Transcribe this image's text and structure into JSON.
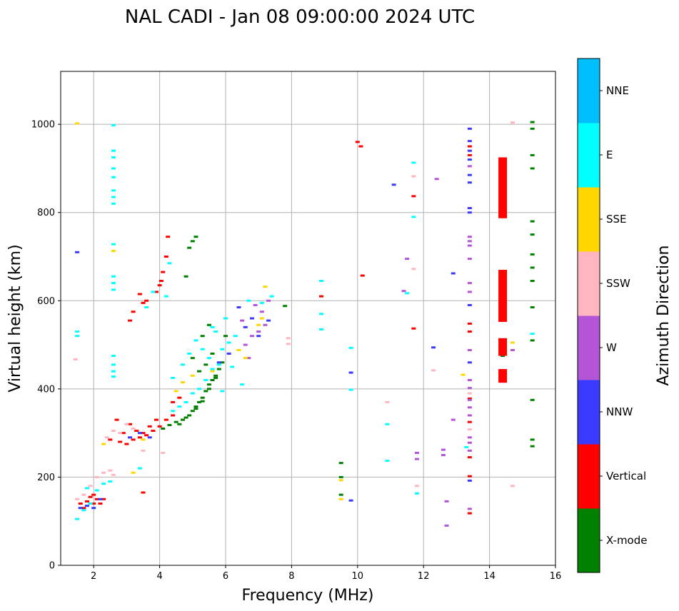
{
  "chart_data": {
    "type": "scatter",
    "title": "NAL CADI - Jan 08 09:00:00 2024 UTC",
    "xlabel": "Frequency (MHz)",
    "ylabel": "Virtual height (km)",
    "xlim": [
      1,
      16
    ],
    "ylim": [
      0,
      1120
    ],
    "xticks": [
      2,
      4,
      6,
      8,
      10,
      12,
      14,
      16
    ],
    "yticks": [
      0,
      200,
      400,
      600,
      800,
      1000
    ],
    "grid": true,
    "colorbar": {
      "label": "Azimuth Direction",
      "categories": [
        {
          "name": "X-mode",
          "color": "#008000"
        },
        {
          "name": "Vertical",
          "color": "#ff0000"
        },
        {
          "name": "NNW",
          "color": "#3a3aff"
        },
        {
          "name": "W",
          "color": "#b355d6"
        },
        {
          "name": "SSW",
          "color": "#ffb6c1"
        },
        {
          "name": "SSE",
          "color": "#ffd700"
        },
        {
          "name": "E",
          "color": "#00ffff"
        },
        {
          "name": "NNE",
          "color": "#00bfff"
        }
      ]
    },
    "series": [
      {
        "name": "X-mode",
        "points": [
          [
            4.1,
            310
          ],
          [
            4.3,
            318
          ],
          [
            4.5,
            325
          ],
          [
            4.7,
            330
          ],
          [
            4.9,
            340
          ],
          [
            5.0,
            350
          ],
          [
            5.1,
            360
          ],
          [
            5.2,
            370
          ],
          [
            5.3,
            380
          ],
          [
            5.4,
            395
          ],
          [
            5.5,
            410
          ],
          [
            5.6,
            420
          ],
          [
            5.7,
            430
          ],
          [
            5.8,
            445
          ],
          [
            5.9,
            460
          ],
          [
            4.6,
            320
          ],
          [
            4.8,
            335
          ],
          [
            5.1,
            355
          ],
          [
            5.3,
            372
          ],
          [
            5.5,
            400
          ],
          [
            5.7,
            425
          ],
          [
            5.2,
            440
          ],
          [
            5.4,
            455
          ],
          [
            5.6,
            480
          ],
          [
            5.0,
            470
          ],
          [
            5.3,
            520
          ],
          [
            5.5,
            545
          ],
          [
            6.0,
            520
          ],
          [
            4.8,
            655
          ],
          [
            4.9,
            720
          ],
          [
            5.0,
            735
          ],
          [
            5.1,
            745
          ],
          [
            7.8,
            588
          ],
          [
            14.4,
            660
          ],
          [
            14.4,
            475
          ],
          [
            14.4,
            860
          ],
          [
            14.4,
            895
          ],
          [
            15.3,
            1005
          ],
          [
            15.3,
            990
          ],
          [
            15.3,
            930
          ],
          [
            15.3,
            900
          ],
          [
            15.3,
            780
          ],
          [
            15.3,
            750
          ],
          [
            15.3,
            705
          ],
          [
            15.3,
            675
          ],
          [
            15.3,
            645
          ],
          [
            15.3,
            585
          ],
          [
            15.3,
            510
          ],
          [
            15.3,
            375
          ],
          [
            15.3,
            285
          ],
          [
            15.3,
            270
          ],
          [
            9.5,
            232
          ],
          [
            9.5,
            200
          ],
          [
            9.5,
            160
          ]
        ]
      },
      {
        "name": "Vertical",
        "points": [
          [
            1.6,
            140
          ],
          [
            1.8,
            145
          ],
          [
            1.9,
            155
          ],
          [
            2.0,
            160
          ],
          [
            2.1,
            150
          ],
          [
            2.2,
            140
          ],
          [
            2.3,
            150
          ],
          [
            2.0,
            140
          ],
          [
            1.7,
            130
          ],
          [
            2.5,
            285
          ],
          [
            2.8,
            280
          ],
          [
            3.0,
            275
          ],
          [
            3.2,
            285
          ],
          [
            3.4,
            290
          ],
          [
            3.6,
            295
          ],
          [
            3.8,
            305
          ],
          [
            4.0,
            315
          ],
          [
            4.2,
            330
          ],
          [
            4.4,
            340
          ],
          [
            3.1,
            320
          ],
          [
            3.3,
            305
          ],
          [
            3.5,
            300
          ],
          [
            3.7,
            315
          ],
          [
            3.9,
            330
          ],
          [
            2.7,
            330
          ],
          [
            2.9,
            300
          ],
          [
            3.1,
            555
          ],
          [
            3.2,
            575
          ],
          [
            3.5,
            595
          ],
          [
            3.6,
            600
          ],
          [
            3.9,
            620
          ],
          [
            4.0,
            635
          ],
          [
            4.05,
            645
          ],
          [
            4.1,
            665
          ],
          [
            4.2,
            700
          ],
          [
            4.25,
            745
          ],
          [
            3.4,
            615
          ],
          [
            3.5,
            165
          ],
          [
            4.6,
            380
          ],
          [
            4.4,
            370
          ],
          [
            8.9,
            610
          ],
          [
            10.0,
            960
          ],
          [
            10.1,
            950
          ],
          [
            10.15,
            657
          ],
          [
            11.7,
            837
          ],
          [
            11.7,
            537
          ],
          [
            13.4,
            950
          ],
          [
            13.4,
            930
          ],
          [
            13.4,
            548
          ],
          [
            13.4,
            530
          ],
          [
            13.4,
            378
          ],
          [
            13.4,
            325
          ],
          [
            13.4,
            245
          ],
          [
            13.4,
            202
          ],
          [
            13.4,
            118
          ]
        ]
      },
      {
        "name": "NNW",
        "points": [
          [
            1.5,
            710
          ],
          [
            1.6,
            130
          ],
          [
            1.8,
            135
          ],
          [
            2.0,
            130
          ],
          [
            2.2,
            150
          ],
          [
            3.1,
            290
          ],
          [
            3.4,
            300
          ],
          [
            3.7,
            290
          ],
          [
            5.8,
            460
          ],
          [
            6.1,
            480
          ],
          [
            6.6,
            540
          ],
          [
            6.8,
            560
          ],
          [
            7.0,
            520
          ],
          [
            7.3,
            555
          ],
          [
            6.4,
            585
          ],
          [
            9.8,
            437
          ],
          [
            9.8,
            147
          ],
          [
            11.1,
            863
          ],
          [
            12.3,
            494
          ],
          [
            12.9,
            662
          ],
          [
            13.4,
            990
          ],
          [
            13.4,
            962
          ],
          [
            13.4,
            940
          ],
          [
            13.4,
            920
          ],
          [
            13.4,
            885
          ],
          [
            13.4,
            868
          ],
          [
            13.4,
            810
          ],
          [
            13.4,
            800
          ],
          [
            13.4,
            590
          ],
          [
            13.4,
            460
          ],
          [
            13.4,
            192
          ]
        ]
      },
      {
        "name": "W",
        "points": [
          [
            6.6,
            500
          ],
          [
            6.8,
            520
          ],
          [
            7.0,
            530
          ],
          [
            7.2,
            545
          ],
          [
            6.9,
            590
          ],
          [
            7.1,
            575
          ],
          [
            6.7,
            470
          ],
          [
            7.3,
            600
          ],
          [
            6.5,
            555
          ],
          [
            11.4,
            622
          ],
          [
            11.5,
            695
          ],
          [
            11.8,
            255
          ],
          [
            11.8,
            241
          ],
          [
            12.4,
            876
          ],
          [
            12.6,
            262
          ],
          [
            12.6,
            250
          ],
          [
            12.7,
            145
          ],
          [
            12.7,
            90
          ],
          [
            12.9,
            330
          ],
          [
            13.4,
            905
          ],
          [
            13.4,
            745
          ],
          [
            13.4,
            735
          ],
          [
            13.4,
            725
          ],
          [
            13.4,
            695
          ],
          [
            13.4,
            640
          ],
          [
            13.4,
            620
          ],
          [
            13.4,
            488
          ],
          [
            13.4,
            420
          ],
          [
            13.4,
            402
          ],
          [
            13.4,
            375
          ],
          [
            13.4,
            358
          ],
          [
            13.4,
            340
          ],
          [
            13.4,
            290
          ],
          [
            13.4,
            278
          ],
          [
            13.4,
            260
          ],
          [
            13.4,
            128
          ],
          [
            14.7,
            488
          ]
        ]
      },
      {
        "name": "SSW",
        "points": [
          [
            1.45,
            467
          ],
          [
            1.5,
            150
          ],
          [
            1.7,
            160
          ],
          [
            1.9,
            180
          ],
          [
            2.1,
            200
          ],
          [
            2.3,
            210
          ],
          [
            2.5,
            215
          ],
          [
            2.6,
            205
          ],
          [
            2.4,
            290
          ],
          [
            2.6,
            305
          ],
          [
            2.8,
            300
          ],
          [
            3.0,
            320
          ],
          [
            3.2,
            310
          ],
          [
            3.5,
            260
          ],
          [
            4.1,
            255
          ],
          [
            7.9,
            515
          ],
          [
            7.9,
            502
          ],
          [
            10.9,
            370
          ],
          [
            11.7,
            882
          ],
          [
            11.7,
            672
          ],
          [
            11.8,
            180
          ],
          [
            12.3,
            442
          ],
          [
            13.4,
            390
          ],
          [
            13.4,
            308
          ],
          [
            14.7,
            1004
          ],
          [
            14.7,
            180
          ]
        ]
      },
      {
        "name": "SSE",
        "points": [
          [
            1.5,
            1002
          ],
          [
            2.6,
            713
          ],
          [
            2.3,
            275
          ],
          [
            3.2,
            210
          ],
          [
            3.5,
            285
          ],
          [
            4.5,
            395
          ],
          [
            4.7,
            415
          ],
          [
            5.0,
            430
          ],
          [
            5.6,
            440
          ],
          [
            6.4,
            488
          ],
          [
            6.6,
            470
          ],
          [
            7.0,
            545
          ],
          [
            7.2,
            632
          ],
          [
            7.1,
            560
          ],
          [
            9.5,
            193
          ],
          [
            9.5,
            150
          ],
          [
            13.2,
            432
          ],
          [
            14.7,
            505
          ]
        ]
      },
      {
        "name": "E",
        "points": [
          [
            1.5,
            530
          ],
          [
            1.5,
            520
          ],
          [
            1.5,
            105
          ],
          [
            1.7,
            125
          ],
          [
            1.9,
            140
          ],
          [
            2.1,
            170
          ],
          [
            2.3,
            185
          ],
          [
            2.5,
            190
          ],
          [
            1.8,
            175
          ],
          [
            2.6,
            998
          ],
          [
            2.6,
            940
          ],
          [
            2.6,
            925
          ],
          [
            2.6,
            900
          ],
          [
            2.6,
            880
          ],
          [
            2.6,
            850
          ],
          [
            2.6,
            835
          ],
          [
            2.6,
            820
          ],
          [
            2.6,
            728
          ],
          [
            2.6,
            655
          ],
          [
            2.6,
            640
          ],
          [
            2.6,
            625
          ],
          [
            2.6,
            475
          ],
          [
            2.6,
            455
          ],
          [
            2.6,
            440
          ],
          [
            2.6,
            428
          ],
          [
            3.4,
            220
          ],
          [
            3.6,
            585
          ],
          [
            3.8,
            620
          ],
          [
            4.2,
            610
          ],
          [
            4.3,
            685
          ],
          [
            4.4,
            350
          ],
          [
            4.6,
            360
          ],
          [
            4.8,
            370
          ],
          [
            5.0,
            390
          ],
          [
            5.2,
            400
          ],
          [
            5.4,
            420
          ],
          [
            5.6,
            445
          ],
          [
            5.8,
            455
          ],
          [
            5.5,
            470
          ],
          [
            5.3,
            490
          ],
          [
            5.1,
            510
          ],
          [
            4.9,
            480
          ],
          [
            5.6,
            540
          ],
          [
            5.9,
            490
          ],
          [
            6.1,
            505
          ],
          [
            6.3,
            520
          ],
          [
            6.0,
            560
          ],
          [
            5.7,
            530
          ],
          [
            6.2,
            450
          ],
          [
            6.5,
            410
          ],
          [
            6.7,
            600
          ],
          [
            7.1,
            595
          ],
          [
            7.4,
            610
          ],
          [
            4.7,
            455
          ],
          [
            4.4,
            425
          ],
          [
            5.9,
            395
          ],
          [
            8.9,
            645
          ],
          [
            8.9,
            570
          ],
          [
            8.9,
            535
          ],
          [
            9.8,
            493
          ],
          [
            9.8,
            398
          ],
          [
            10.9,
            320
          ],
          [
            10.9,
            237
          ],
          [
            11.5,
            617
          ],
          [
            11.7,
            913
          ],
          [
            11.7,
            790
          ],
          [
            11.8,
            163
          ],
          [
            13.3,
            268
          ],
          [
            15.3,
            525
          ]
        ]
      },
      {
        "name": "NNE",
        "points": []
      }
    ],
    "blocks": [
      {
        "name": "Vertical",
        "x": 14.4,
        "y0": 787,
        "y1": 925
      },
      {
        "name": "Vertical",
        "x": 14.4,
        "y0": 552,
        "y1": 670
      },
      {
        "name": "Vertical",
        "x": 14.4,
        "y0": 475,
        "y1": 515
      },
      {
        "name": "Vertical",
        "x": 14.4,
        "y0": 414,
        "y1": 445
      }
    ]
  }
}
